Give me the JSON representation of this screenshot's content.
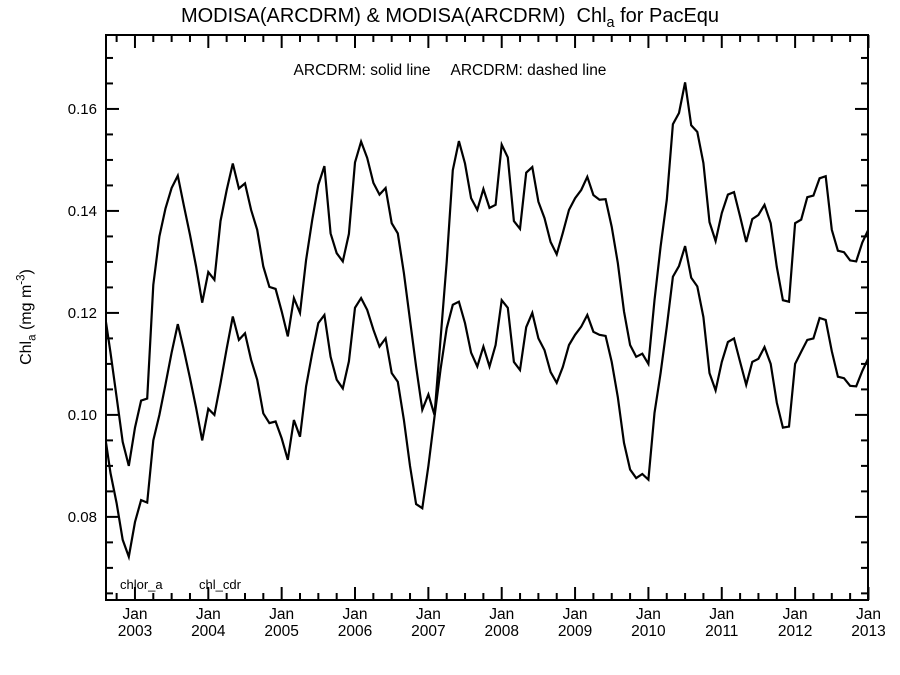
{
  "title": {
    "part1": "MODISA(ARCDRM) & MODISA(ARCDRM)  Chl",
    "sub": "a",
    "part2": " for PacEqu"
  },
  "legend": {
    "solid_label": "ARCDRM: solid line",
    "dashed_label": "ARCDRM: dashed line"
  },
  "y_axis": {
    "label_part1": "Chl",
    "label_sub": "a",
    "label_part2": " (mg m",
    "label_sup": "-3",
    "label_part3": ")"
  },
  "annotations": [
    "chlor_a",
    "chl_cdr"
  ],
  "colors": {
    "line": "#000000",
    "background": "#ffffff"
  },
  "chart_data": {
    "type": "line",
    "title": "MODISA(ARCDRM) & MODISA(ARCDRM)  Chl_a for PacEqu",
    "xlabel": "",
    "ylabel": "Chl_a (mg m^-3)",
    "x_start_month": "2002-08",
    "x_end_month": "2013-01",
    "months_per_point": 1,
    "x_major_ticks": [
      "Jan 2003",
      "Jan 2004",
      "Jan 2005",
      "Jan 2006",
      "Jan 2007",
      "Jan 2008",
      "Jan 2009",
      "Jan 2010",
      "Jan 2011",
      "Jan 2012",
      "Jan 2013"
    ],
    "x_minor_step_months": 3,
    "ylim": [
      0.0637,
      0.1745
    ],
    "y_major_ticks": [
      0.08,
      0.1,
      0.12,
      0.14,
      0.16
    ],
    "y_minor_step": 0.005,
    "grid": false,
    "legend_position": "top-center-inside",
    "series": [
      {
        "name": "chlor_a",
        "legend": "ARCDRM: solid line",
        "style": "solid",
        "color": "#000000",
        "values": [
          0.1203,
          0.1122,
          0.1035,
          0.0947,
          0.09,
          0.0975,
          0.1028,
          0.1032,
          0.1255,
          0.135,
          0.1405,
          0.1445,
          0.1469,
          0.141,
          0.1353,
          0.1291,
          0.122,
          0.128,
          0.1265,
          0.138,
          0.1441,
          0.1493,
          0.1444,
          0.1454,
          0.1402,
          0.1363,
          0.1291,
          0.1251,
          0.1247,
          0.1203,
          0.1154,
          0.1229,
          0.12,
          0.1304,
          0.1382,
          0.1451,
          0.1488,
          0.1356,
          0.1317,
          0.1301,
          0.1355,
          0.1495,
          0.1536,
          0.1504,
          0.1455,
          0.1432,
          0.1445,
          0.1376,
          0.1356,
          0.1278,
          0.1186,
          0.1095,
          0.101,
          0.104,
          0.1,
          0.115,
          0.13,
          0.148,
          0.1537,
          0.1493,
          0.1425,
          0.1402,
          0.1443,
          0.1406,
          0.1412,
          0.153,
          0.1505,
          0.138,
          0.1365,
          0.1475,
          0.1486,
          0.1418,
          0.1386,
          0.1339,
          0.1315,
          0.1357,
          0.1402,
          0.1425,
          0.1441,
          0.1467,
          0.1431,
          0.1422,
          0.1423,
          0.1369,
          0.1298,
          0.1203,
          0.1137,
          0.1114,
          0.112,
          0.11,
          0.1225,
          0.133,
          0.1422,
          0.157,
          0.1592,
          0.1652,
          0.1568,
          0.1555,
          0.1494,
          0.1378,
          0.1341,
          0.1396,
          0.1432,
          0.1437,
          0.1389,
          0.1339,
          0.1384,
          0.1392,
          0.1412,
          0.1376,
          0.129,
          0.1225,
          0.1222,
          0.1376,
          0.1383,
          0.1427,
          0.143,
          0.1464,
          0.1468,
          0.1363,
          0.1322,
          0.1319,
          0.1303,
          0.1301,
          0.1338,
          0.1364
        ]
      },
      {
        "name": "chl_cdr",
        "legend": "ARCDRM: dashed line",
        "style": "dashed-rendered-solid",
        "color": "#000000",
        "values": [
          0.0967,
          0.0886,
          0.0827,
          0.0755,
          0.0722,
          0.079,
          0.0833,
          0.0828,
          0.095,
          0.1,
          0.106,
          0.1122,
          0.1178,
          0.1127,
          0.1072,
          0.1014,
          0.095,
          0.1012,
          0.1,
          0.1062,
          0.113,
          0.1193,
          0.1147,
          0.116,
          0.1108,
          0.1069,
          0.1003,
          0.0984,
          0.0987,
          0.0954,
          0.0912,
          0.099,
          0.0957,
          0.1056,
          0.1121,
          0.118,
          0.1196,
          0.1114,
          0.1069,
          0.1052,
          0.1105,
          0.121,
          0.1229,
          0.1206,
          0.1167,
          0.1134,
          0.115,
          0.1082,
          0.1065,
          0.099,
          0.09,
          0.0825,
          0.0817,
          0.09,
          0.0996,
          0.109,
          0.117,
          0.1216,
          0.1222,
          0.118,
          0.1122,
          0.1095,
          0.1134,
          0.1095,
          0.1137,
          0.1225,
          0.121,
          0.1104,
          0.1088,
          0.1172,
          0.12,
          0.115,
          0.1127,
          0.1084,
          0.1063,
          0.1094,
          0.1137,
          0.1157,
          0.1173,
          0.1196,
          0.1163,
          0.1157,
          0.1155,
          0.1104,
          0.1035,
          0.0945,
          0.0893,
          0.0876,
          0.0884,
          0.0873,
          0.1004,
          0.1082,
          0.1173,
          0.1271,
          0.1292,
          0.1331,
          0.1269,
          0.1252,
          0.1192,
          0.1082,
          0.1048,
          0.1104,
          0.1143,
          0.115,
          0.1104,
          0.1059,
          0.1104,
          0.111,
          0.1133,
          0.11,
          0.1024,
          0.0975,
          0.0977,
          0.11,
          0.1124,
          0.1147,
          0.115,
          0.119,
          0.1186,
          0.1125,
          0.1075,
          0.1072,
          0.1057,
          0.1056,
          0.1086,
          0.1112
        ]
      }
    ]
  }
}
